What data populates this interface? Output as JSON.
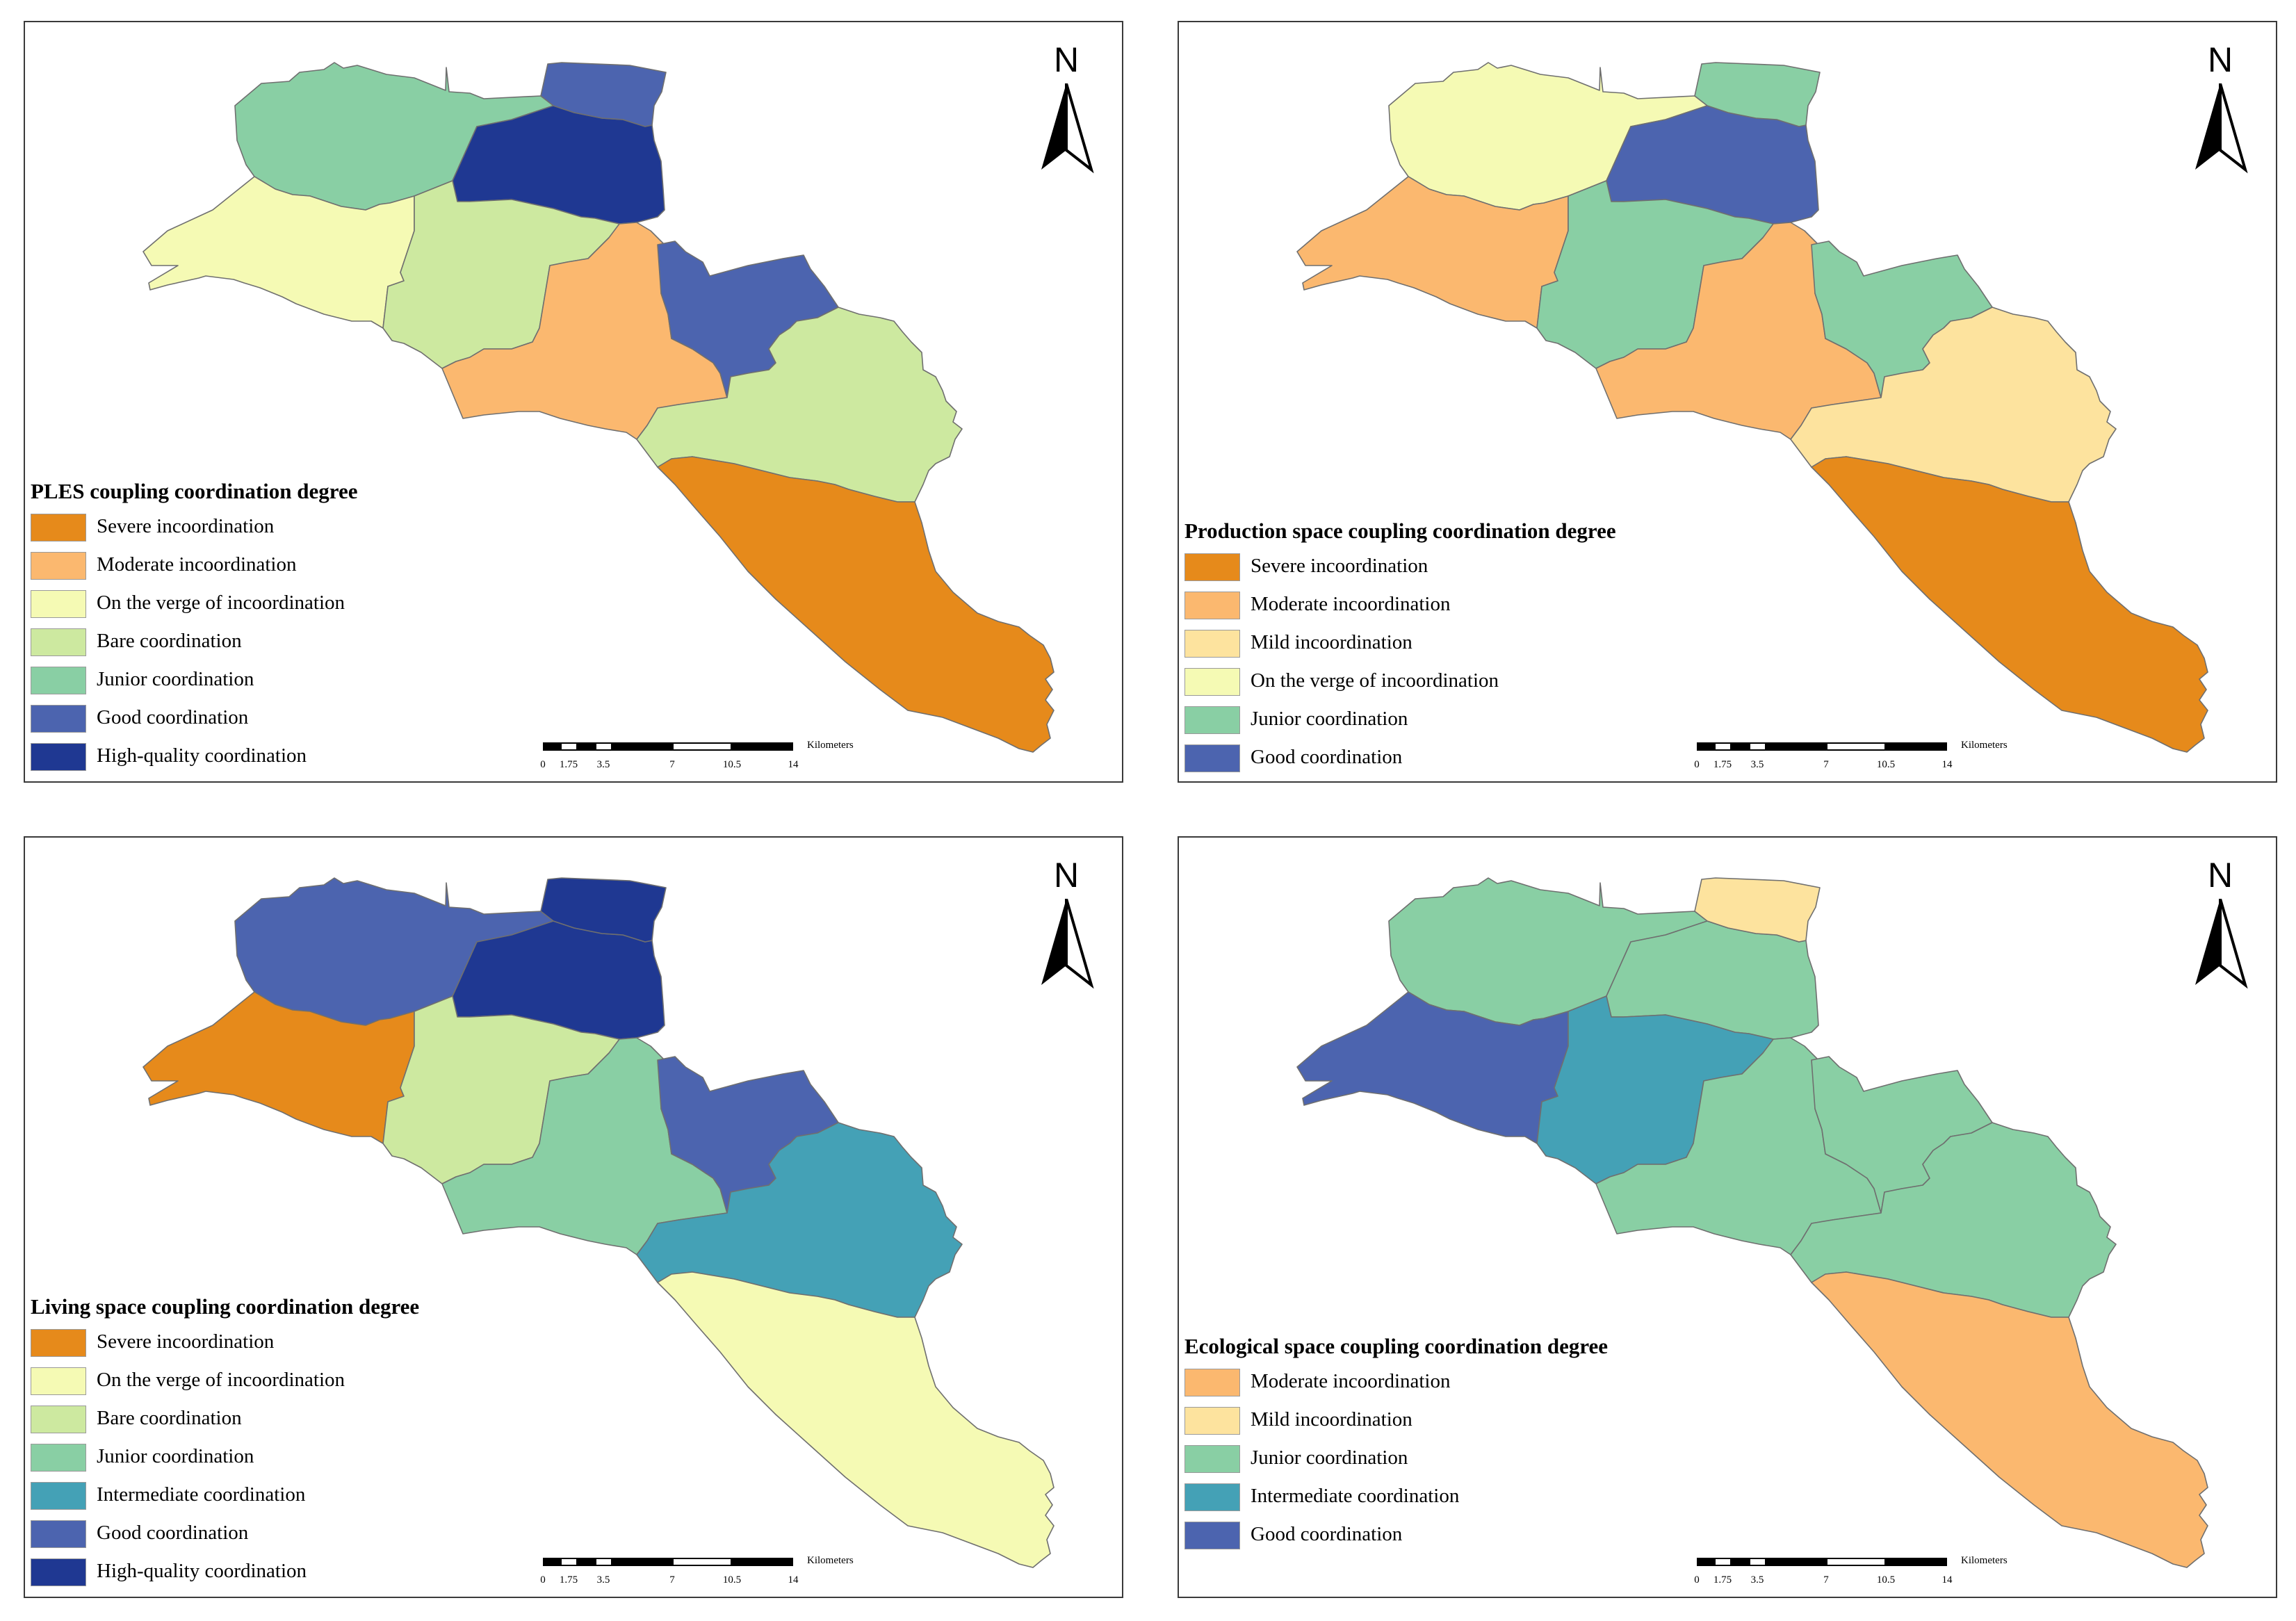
{
  "north_label": "N",
  "scalebar": {
    "unit": "Kilometers",
    "ticks": [
      "0",
      "1.75",
      "3.5",
      "7",
      "10.5",
      "14"
    ]
  },
  "colors": {
    "severe": "#E68A1B",
    "moderate": "#FBB86F",
    "mild": "#FDE39E",
    "verge": "#F5FAB4",
    "bare": "#CDE9A0",
    "junior": "#89CFA4",
    "intermediate": "#44A1B6",
    "good": "#4C64AF",
    "high": "#1F3892"
  },
  "maps": [
    {
      "title": "PLES coupling coordination degree",
      "legend": [
        {
          "label": "Severe incoordination",
          "color": "#E68A1B"
        },
        {
          "label": "Moderate incoordination",
          "color": "#FBB86F"
        },
        {
          "label": "On the verge of incoordination",
          "color": "#F5FAB4"
        },
        {
          "label": "Bare coordination",
          "color": "#CDE9A0"
        },
        {
          "label": "Junior coordination",
          "color": "#89CFA4"
        },
        {
          "label": "Good coordination",
          "color": "#4C64AF"
        },
        {
          "label": "High-quality coordination",
          "color": "#1F3892"
        }
      ],
      "regions": {
        "north_west": "#89CFA4",
        "north_east": "#4C64AF",
        "north_center": "#1F3892",
        "west": "#F5FAB4",
        "center_west": "#CDE9A0",
        "center": "#FBB86F",
        "east_north": "#4C64AF",
        "east": "#CDE9A0",
        "south_east": "#E68A1B"
      }
    },
    {
      "title": "Production space coupling coordination degree",
      "legend": [
        {
          "label": "Severe incoordination",
          "color": "#E68A1B"
        },
        {
          "label": "Moderate incoordination",
          "color": "#FBB86F"
        },
        {
          "label": "Mild incoordination",
          "color": "#FDE39E"
        },
        {
          "label": "On the verge of incoordination",
          "color": "#F5FAB4"
        },
        {
          "label": "Junior coordination",
          "color": "#89CFA4"
        },
        {
          "label": "Good coordination",
          "color": "#4C64AF"
        }
      ],
      "regions": {
        "north_west": "#F5FAB4",
        "north_east": "#89CFA4",
        "north_center": "#4C64AF",
        "west": "#FBB86F",
        "center_west": "#89CFA4",
        "center": "#FBB86F",
        "east_north": "#89CFA4",
        "east": "#FDE39E",
        "south_east": "#E68A1B"
      }
    },
    {
      "title": "Living space coupling coordination degree",
      "legend": [
        {
          "label": "Severe incoordination",
          "color": "#E68A1B"
        },
        {
          "label": "On the verge of incoordination",
          "color": "#F5FAB4"
        },
        {
          "label": "Bare coordination",
          "color": "#CDE9A0"
        },
        {
          "label": "Junior coordination",
          "color": "#89CFA4"
        },
        {
          "label": "Intermediate coordination",
          "color": "#44A1B6"
        },
        {
          "label": "Good coordination",
          "color": "#4C64AF"
        },
        {
          "label": "High-quality coordination",
          "color": "#1F3892"
        }
      ],
      "regions": {
        "north_west": "#4C64AF",
        "north_east": "#1F3892",
        "north_center": "#1F3892",
        "west": "#E68A1B",
        "center_west": "#CDE9A0",
        "center": "#89CFA4",
        "east_north": "#4C64AF",
        "east": "#44A1B6",
        "south_east": "#F5FAB4"
      }
    },
    {
      "title": "Ecological space coupling coordination degree",
      "legend": [
        {
          "label": "Moderate incoordination",
          "color": "#FBB86F"
        },
        {
          "label": "Mild incoordination",
          "color": "#FDE39E"
        },
        {
          "label": "Junior coordination",
          "color": "#89CFA4"
        },
        {
          "label": "Intermediate coordination",
          "color": "#44A1B6"
        },
        {
          "label": "Good coordination",
          "color": "#4C64AF"
        }
      ],
      "regions": {
        "north_west": "#89CFA4",
        "north_east": "#FDE39E",
        "north_center": "#89CFA4",
        "west": "#4C64AF",
        "center_west": "#44A1B6",
        "center": "#89CFA4",
        "east_north": "#89CFA4",
        "east": "#89CFA4",
        "south_east": "#FBB86F"
      }
    }
  ]
}
